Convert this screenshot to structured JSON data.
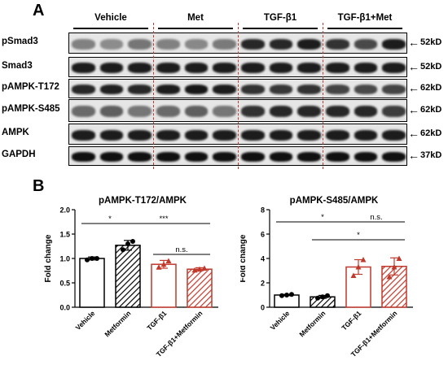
{
  "panel_a": {
    "letter": "A",
    "groups": [
      "Vehicle",
      "Met",
      "TGF-β1",
      "TGF-β1+Met"
    ],
    "rows": [
      {
        "label": "pSmad3",
        "kd": "52kD",
        "intensity": [
          0.45,
          0.4,
          0.5,
          0.45,
          0.42,
          0.48,
          0.85,
          0.85,
          0.9,
          0.8,
          0.7,
          0.9
        ]
      },
      {
        "label": "Smad3",
        "kd": "52kD",
        "intensity": [
          0.9,
          0.9,
          0.9,
          0.9,
          0.9,
          0.9,
          0.9,
          0.9,
          0.9,
          0.9,
          0.9,
          0.9
        ]
      },
      {
        "label": "pAMPK-T172",
        "kd": "62kD",
        "intensity": [
          0.85,
          0.88,
          0.85,
          0.9,
          0.92,
          0.9,
          0.8,
          0.78,
          0.8,
          0.72,
          0.7,
          0.72
        ]
      },
      {
        "label": "pAMPK-S485",
        "kd": "62kD",
        "intensity": [
          0.55,
          0.6,
          0.5,
          0.55,
          0.6,
          0.5,
          0.8,
          0.85,
          0.85,
          0.85,
          0.85,
          0.75
        ]
      },
      {
        "label": "AMPK",
        "kd": "62kD",
        "intensity": [
          0.9,
          0.9,
          0.9,
          0.9,
          0.9,
          0.9,
          0.9,
          0.9,
          0.9,
          0.9,
          0.9,
          0.9
        ]
      },
      {
        "label": "GAPDH",
        "kd": "37kD",
        "intensity": [
          0.95,
          0.95,
          0.95,
          0.95,
          0.95,
          0.95,
          0.95,
          0.95,
          0.95,
          0.95,
          0.95,
          0.95
        ]
      }
    ]
  },
  "panel_b": {
    "letter": "B"
  },
  "chart_data": [
    {
      "type": "bar",
      "title": "pAMPK-T172/AMPK",
      "ylabel": "Fold change",
      "categories": [
        "Vehicle",
        "Metformin",
        "TGF-β1",
        "TGF-β1+Metformin"
      ],
      "values": [
        1.0,
        1.27,
        0.88,
        0.78
      ],
      "errors": [
        0.03,
        0.1,
        0.08,
        0.03
      ],
      "points": [
        [
          0.97,
          1.0,
          1.0
        ],
        [
          1.18,
          1.3,
          1.35
        ],
        [
          0.82,
          0.88,
          0.95
        ],
        [
          0.76,
          0.78,
          0.8
        ]
      ],
      "ylim": [
        0,
        2.0
      ],
      "yticks": [
        "0.0",
        "0.5",
        "1.0",
        "1.5",
        "2.0"
      ],
      "significance": [
        {
          "from": 0,
          "to": 1,
          "label": "*"
        },
        {
          "from": 1,
          "to": 3,
          "label": "***"
        },
        {
          "from": 2,
          "to": 3,
          "label": "n.s."
        }
      ]
    },
    {
      "type": "bar",
      "title": "pAMPK-S485/AMPK",
      "ylabel": "Fold change",
      "categories": [
        "Vehicle",
        "Metformin",
        "TGF-β1",
        "TGF-β1+Metformin"
      ],
      "values": [
        1.0,
        0.85,
        3.3,
        3.35
      ],
      "errors": [
        0.05,
        0.12,
        0.6,
        0.7
      ],
      "points": [
        [
          0.95,
          1.0,
          1.05
        ],
        [
          0.75,
          0.85,
          0.95
        ],
        [
          2.6,
          3.3,
          3.9
        ],
        [
          2.5,
          3.3,
          4.0
        ]
      ],
      "ylim": [
        0,
        8
      ],
      "yticks": [
        "0",
        "2",
        "4",
        "6",
        "8"
      ],
      "significance": [
        {
          "from": 0,
          "to": 2,
          "label": "*"
        },
        {
          "from": 2,
          "to": 3,
          "label": "n.s."
        },
        {
          "from": 1,
          "to": 3,
          "label": "*"
        }
      ]
    }
  ],
  "colors": {
    "black": "#000000",
    "red": "#c0392b",
    "divider": "#c0392b"
  }
}
